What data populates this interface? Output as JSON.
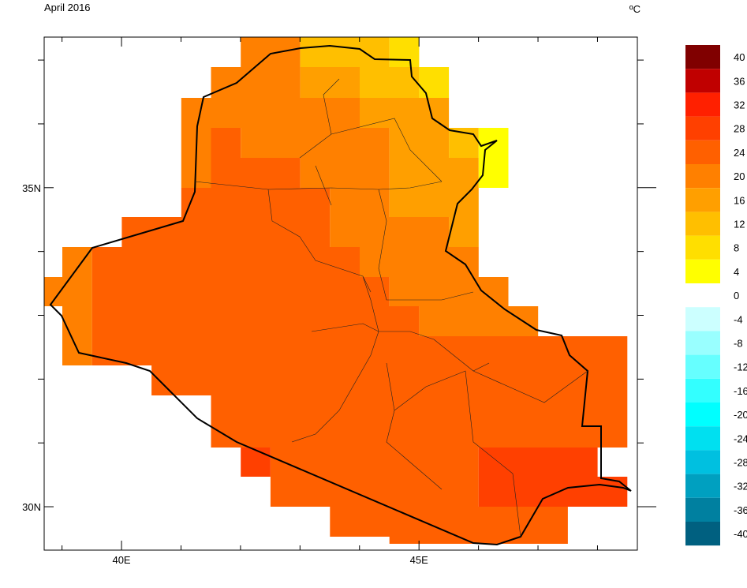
{
  "chart_data": {
    "type": "map",
    "title": "April 2016",
    "unit": "ºC",
    "xlim": [
      38.7,
      48.67
    ],
    "ylim": [
      29.32,
      37.36
    ],
    "xticks": [
      {
        "value": 40,
        "label": "40E"
      },
      {
        "value": 45,
        "label": "45E"
      }
    ],
    "yticks": [
      {
        "value": 35,
        "label": "35N"
      },
      {
        "value": 30,
        "label": "30N"
      }
    ],
    "xminor": [
      39,
      41,
      42,
      43,
      44,
      46,
      47,
      48
    ],
    "yminor": [
      37,
      36,
      34,
      33,
      32,
      31
    ],
    "colorbar": {
      "levels": [
        40,
        36,
        32,
        28,
        24,
        20,
        16,
        12,
        8,
        4,
        0,
        -4,
        -8,
        -12,
        -16,
        -20,
        -24,
        -28,
        -32,
        -36,
        -40
      ],
      "colors": [
        "#800000",
        "#c00000",
        "#ff2000",
        "#ff4000",
        "#ff6000",
        "#ff8000",
        "#ff9f00",
        "#ffbf00",
        "#ffdf00",
        "#ffff00",
        "#ffffff",
        "#ccffff",
        "#99ffff",
        "#66ffff",
        "#33ffff",
        "#00ffff",
        "#00e0f0",
        "#00c0e0",
        "#00a0c0",
        "#0080a0",
        "#006080"
      ]
    }
  }
}
